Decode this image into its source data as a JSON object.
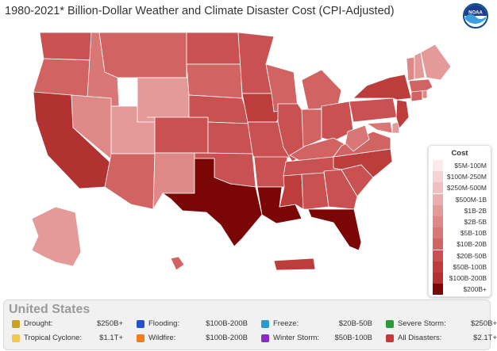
{
  "title": "1980-2021* Billion-Dollar Weather and Climate Disaster Cost (CPI-Adjusted)",
  "logo": {
    "icon": "noaa-logo-icon",
    "text": "NOAA"
  },
  "map": {
    "regions": [
      {
        "name": "Washington",
        "bin": "$20B-50B"
      },
      {
        "name": "Oregon",
        "bin": "$10B-20B"
      },
      {
        "name": "California",
        "bin": "$100B-200B"
      },
      {
        "name": "Idaho",
        "bin": "$5B-10B"
      },
      {
        "name": "Nevada",
        "bin": "$2B-5B"
      },
      {
        "name": "Utah",
        "bin": "$1B-2B"
      },
      {
        "name": "Arizona",
        "bin": "$10B-20B"
      },
      {
        "name": "Montana",
        "bin": "$10B-20B"
      },
      {
        "name": "Wyoming",
        "bin": "$1B-2B"
      },
      {
        "name": "Colorado",
        "bin": "$20B-50B"
      },
      {
        "name": "New Mexico",
        "bin": "$2B-5B"
      },
      {
        "name": "North Dakota",
        "bin": "$20B-50B"
      },
      {
        "name": "South Dakota",
        "bin": "$10B-20B"
      },
      {
        "name": "Nebraska",
        "bin": "$20B-50B"
      },
      {
        "name": "Kansas",
        "bin": "$20B-50B"
      },
      {
        "name": "Oklahoma",
        "bin": "$20B-50B"
      },
      {
        "name": "Texas",
        "bin": "$200B+"
      },
      {
        "name": "Minnesota",
        "bin": "$20B-50B"
      },
      {
        "name": "Iowa",
        "bin": "$50B-100B"
      },
      {
        "name": "Missouri",
        "bin": "$20B-50B"
      },
      {
        "name": "Arkansas",
        "bin": "$20B-50B"
      },
      {
        "name": "Louisiana",
        "bin": "$200B+"
      },
      {
        "name": "Wisconsin",
        "bin": "$10B-20B"
      },
      {
        "name": "Illinois",
        "bin": "$20B-50B"
      },
      {
        "name": "Michigan",
        "bin": "$10B-20B"
      },
      {
        "name": "Indiana",
        "bin": "$10B-20B"
      },
      {
        "name": "Ohio",
        "bin": "$20B-50B"
      },
      {
        "name": "Kentucky",
        "bin": "$10B-20B"
      },
      {
        "name": "Tennessee",
        "bin": "$20B-50B"
      },
      {
        "name": "Mississippi",
        "bin": "$50B-100B"
      },
      {
        "name": "Alabama",
        "bin": "$20B-50B"
      },
      {
        "name": "Georgia",
        "bin": "$20B-50B"
      },
      {
        "name": "Florida",
        "bin": "$200B+"
      },
      {
        "name": "South Carolina",
        "bin": "$20B-50B"
      },
      {
        "name": "North Carolina",
        "bin": "$50B-100B"
      },
      {
        "name": "Virginia",
        "bin": "$10B-20B"
      },
      {
        "name": "West Virginia",
        "bin": "$5B-10B"
      },
      {
        "name": "Maryland",
        "bin": "$5B-10B"
      },
      {
        "name": "Delaware",
        "bin": "$1B-2B"
      },
      {
        "name": "Pennsylvania",
        "bin": "$20B-50B"
      },
      {
        "name": "New Jersey",
        "bin": "$50B-100B"
      },
      {
        "name": "New York",
        "bin": "$50B-100B"
      },
      {
        "name": "Connecticut",
        "bin": "$10B-20B"
      },
      {
        "name": "Rhode Island",
        "bin": "$2B-5B"
      },
      {
        "name": "Massachusetts",
        "bin": "$10B-20B"
      },
      {
        "name": "Vermont",
        "bin": "$2B-5B"
      },
      {
        "name": "New Hampshire",
        "bin": "$1B-2B"
      },
      {
        "name": "Maine",
        "bin": "$1B-2B"
      },
      {
        "name": "Alaska",
        "bin": "$1B-2B"
      },
      {
        "name": "Hawaii",
        "bin": "$10B-20B"
      },
      {
        "name": "Puerto Rico",
        "bin": "$50B-100B"
      }
    ]
  },
  "legend": {
    "title": "Cost",
    "items": [
      {
        "label": "$5M-100M",
        "color": "#fbeaea"
      },
      {
        "label": "$100M-250M",
        "color": "#f6d4d4"
      },
      {
        "label": "$250M-500M",
        "color": "#f0c0c0"
      },
      {
        "label": "$500M-1B",
        "color": "#ebadad"
      },
      {
        "label": "$1B-2B",
        "color": "#e59a9a"
      },
      {
        "label": "$2B-5B",
        "color": "#df8888"
      },
      {
        "label": "$5B-10B",
        "color": "#d97676"
      },
      {
        "label": "$10B-20B",
        "color": "#d26363"
      },
      {
        "label": "$20B-50B",
        "color": "#c95151"
      },
      {
        "label": "$50B-100B",
        "color": "#bd3d3d"
      },
      {
        "label": "$100B-200B",
        "color": "#b23232"
      },
      {
        "label": "$200B+",
        "color": "#7a0606"
      }
    ]
  },
  "summary": {
    "title": "United States",
    "items": [
      {
        "label": "Drought:",
        "value": "$250B+",
        "color": "#c9a227"
      },
      {
        "label": "Flooding:",
        "value": "$100B-200B",
        "color": "#2255cc"
      },
      {
        "label": "Freeze:",
        "value": "$20B-50B",
        "color": "#2a9ad0"
      },
      {
        "label": "Severe Storm:",
        "value": "$250B+",
        "color": "#2e9a3a"
      },
      {
        "label": "Tropical Cyclone:",
        "value": "$1.1T+",
        "color": "#f2c74a"
      },
      {
        "label": "Wildfire:",
        "value": "$100B-200B",
        "color": "#ef7d1a"
      },
      {
        "label": "Winter Storm:",
        "value": "$50B-100B",
        "color": "#8a2bc8"
      },
      {
        "label": "All Disasters:",
        "value": "$2.1T+",
        "color": "#c43a3a"
      }
    ]
  }
}
